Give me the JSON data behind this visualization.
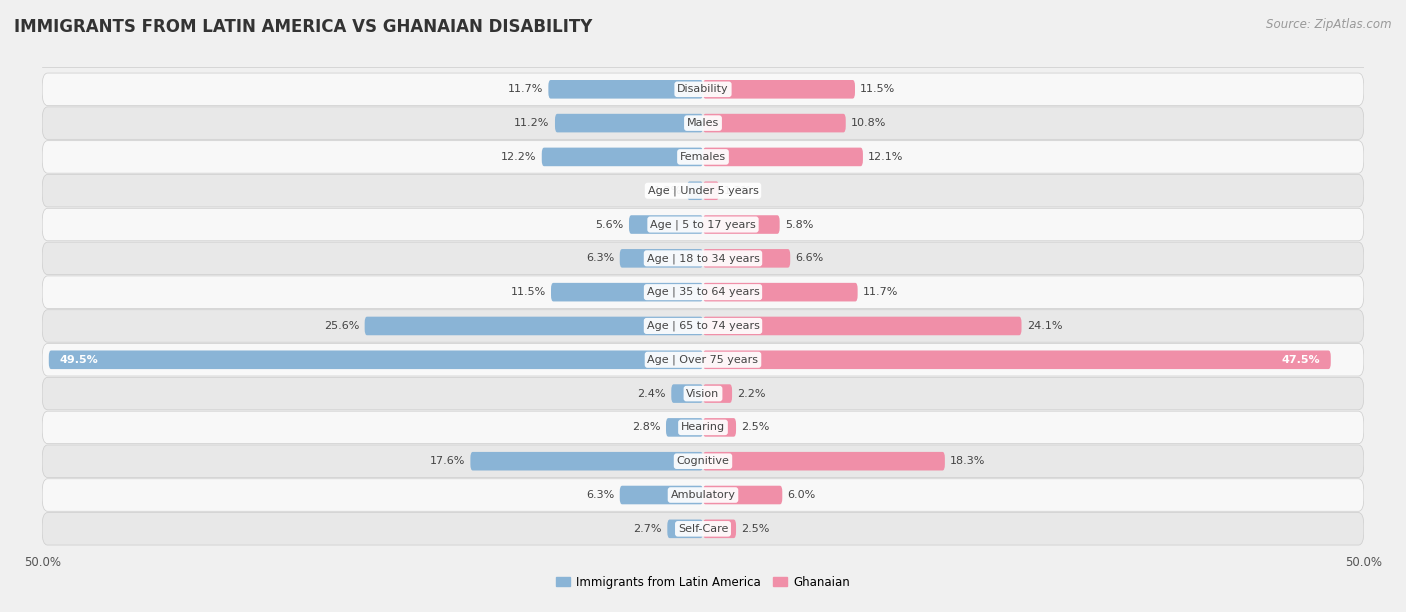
{
  "title": "IMMIGRANTS FROM LATIN AMERICA VS GHANAIAN DISABILITY",
  "source": "Source: ZipAtlas.com",
  "categories": [
    "Disability",
    "Males",
    "Females",
    "Age | Under 5 years",
    "Age | 5 to 17 years",
    "Age | 18 to 34 years",
    "Age | 35 to 64 years",
    "Age | 65 to 74 years",
    "Age | Over 75 years",
    "Vision",
    "Hearing",
    "Cognitive",
    "Ambulatory",
    "Self-Care"
  ],
  "left_values": [
    11.7,
    11.2,
    12.2,
    1.2,
    5.6,
    6.3,
    11.5,
    25.6,
    49.5,
    2.4,
    2.8,
    17.6,
    6.3,
    2.7
  ],
  "right_values": [
    11.5,
    10.8,
    12.1,
    1.2,
    5.8,
    6.6,
    11.7,
    24.1,
    47.5,
    2.2,
    2.5,
    18.3,
    6.0,
    2.5
  ],
  "left_color": "#8ab4d6",
  "right_color": "#f08fa8",
  "left_label": "Immigrants from Latin America",
  "right_label": "Ghanaian",
  "max_val": 50.0,
  "background_color": "#f0f0f0",
  "row_bg_odd": "#e8e8e8",
  "row_bg_even": "#f8f8f8",
  "title_fontsize": 12,
  "source_fontsize": 8.5,
  "label_fontsize": 8,
  "value_fontsize": 8
}
